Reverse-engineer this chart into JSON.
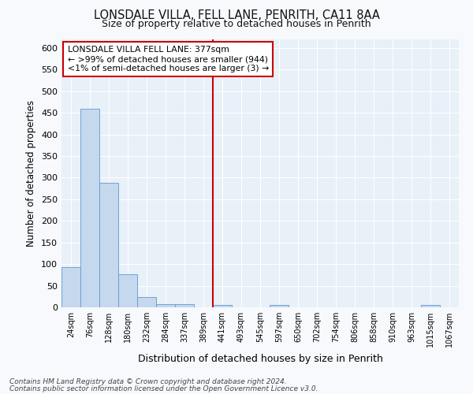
{
  "title_line1": "LONSDALE VILLA, FELL LANE, PENRITH, CA11 8AA",
  "title_line2": "Size of property relative to detached houses in Penrith",
  "xlabel": "Distribution of detached houses by size in Penrith",
  "ylabel": "Number of detached properties",
  "categories": [
    "24sqm",
    "76sqm",
    "128sqm",
    "180sqm",
    "232sqm",
    "284sqm",
    "337sqm",
    "389sqm",
    "441sqm",
    "493sqm",
    "545sqm",
    "597sqm",
    "650sqm",
    "702sqm",
    "754sqm",
    "806sqm",
    "858sqm",
    "910sqm",
    "963sqm",
    "1015sqm",
    "1067sqm"
  ],
  "values": [
    93,
    460,
    288,
    76,
    23,
    8,
    8,
    0,
    5,
    0,
    0,
    5,
    0,
    0,
    0,
    0,
    0,
    0,
    0,
    5
  ],
  "bar_color": "#c5d8ed",
  "bar_edge_color": "#5b9bd5",
  "vline_x_index": 7,
  "vline_color": "#cc0000",
  "annotation_title": "LONSDALE VILLA FELL LANE: 377sqm",
  "annotation_line1": "← >99% of detached houses are smaller (944)",
  "annotation_line2": "<1% of semi-detached houses are larger (3) →",
  "annotation_box_edgecolor": "#cc0000",
  "ylim": [
    0,
    620
  ],
  "yticks": [
    0,
    50,
    100,
    150,
    200,
    250,
    300,
    350,
    400,
    450,
    500,
    550,
    600
  ],
  "footer_line1": "Contains HM Land Registry data © Crown copyright and database right 2024.",
  "footer_line2": "Contains public sector information licensed under the Open Government Licence v3.0.",
  "fig_facecolor": "#f7f9fc",
  "axes_facecolor": "#e8f0f8"
}
